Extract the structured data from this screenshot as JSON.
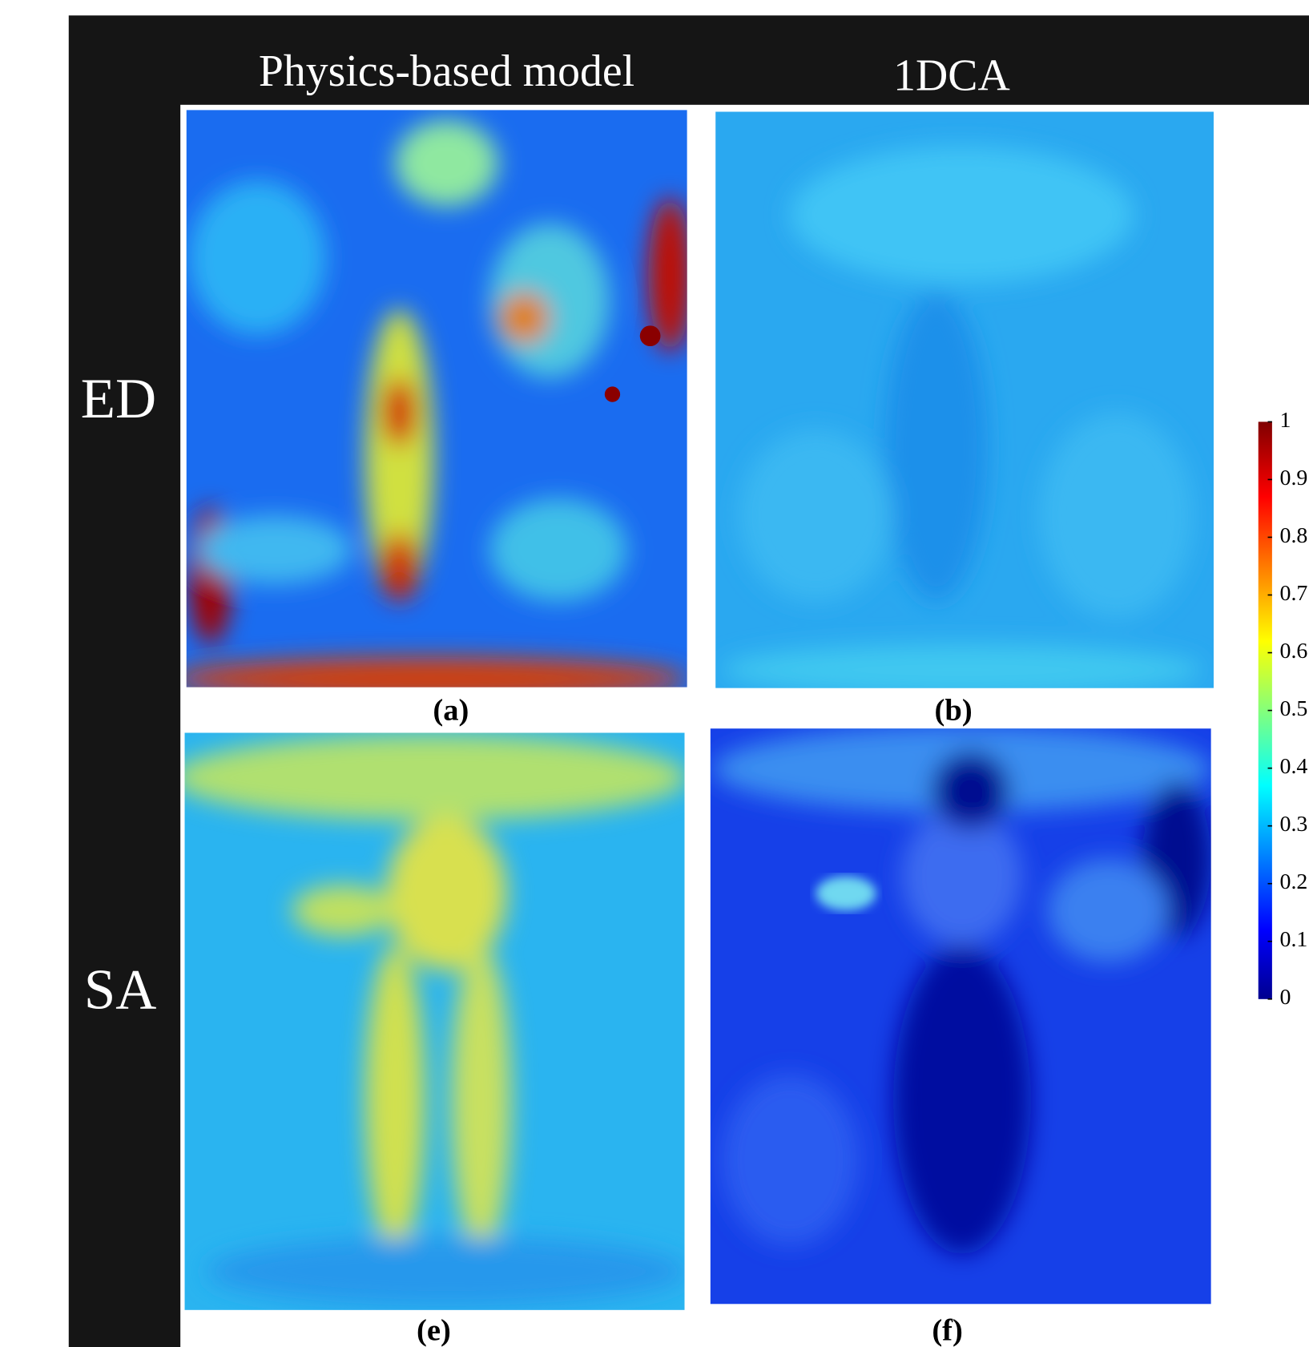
{
  "columns": [
    "Physics-based model",
    "1DCA"
  ],
  "rows": [
    "ED",
    "SA"
  ],
  "panels": [
    "(a)",
    "(b)",
    "(e)",
    "(f)"
  ],
  "colorbar": {
    "range": [
      0,
      1
    ],
    "ticks": [
      0,
      0.1,
      0.2,
      0.3,
      0.4,
      0.5,
      0.6,
      0.7,
      0.8,
      0.9,
      1
    ]
  }
}
